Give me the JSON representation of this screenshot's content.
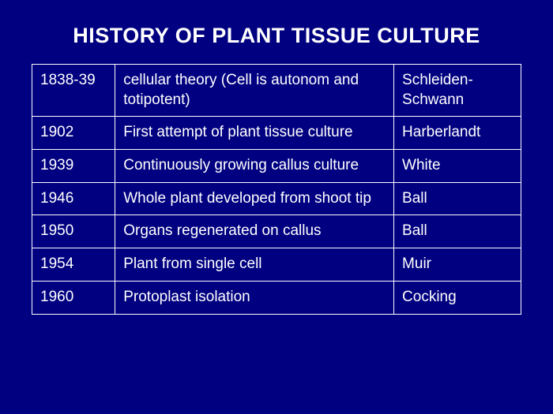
{
  "title": "HISTORY OF PLANT TISSUE CULTURE",
  "table": {
    "background_color": "#000080",
    "border_color": "#ffffff",
    "text_color": "#ffffff",
    "title_font": "Arial Black",
    "body_font": "Comic Sans MS",
    "title_fontsize": 27,
    "cell_fontsize": 19,
    "columns": [
      "year",
      "description",
      "person"
    ],
    "column_widths_pct": [
      17,
      57,
      26
    ],
    "rows": [
      {
        "year": "1838-39",
        "description": " cellular theory (Cell is autonom and totipotent)",
        "person": "Schleiden-Schwann"
      },
      {
        "year": "1902",
        "description": " First attempt of plant tissue culture",
        "person": "Harberlandt"
      },
      {
        "year": "1939",
        "description": "Continuously growing callus culture",
        "person": "White"
      },
      {
        "year": "1946",
        "description": "Whole plant developed from shoot tip",
        "person": "Ball"
      },
      {
        "year": "1950",
        "description": "Organs regenerated on callus",
        "person": "Ball"
      },
      {
        "year": "1954",
        "description": "Plant from single cell",
        "person": "Muir"
      },
      {
        "year": "1960",
        "description": "Protoplast isolation",
        "person": "Cocking"
      }
    ]
  }
}
